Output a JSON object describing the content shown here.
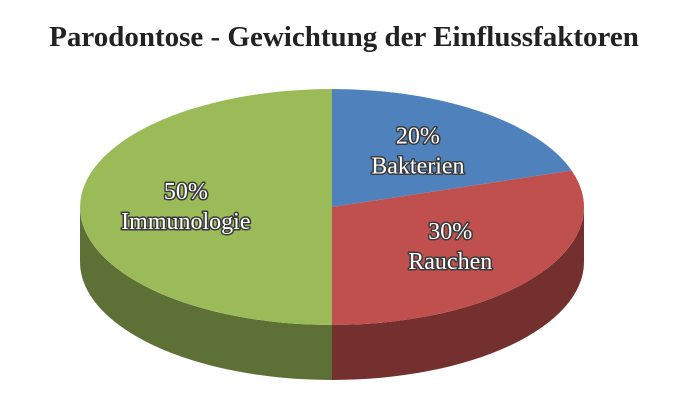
{
  "chart_data": {
    "type": "pie",
    "title": "Parodontose - Gewichtung der Einflussfaktoren",
    "categories": [
      "Bakterien",
      "Rauchen",
      "Immunologie"
    ],
    "values": [
      20,
      30,
      50
    ],
    "value_labels": [
      "20%",
      "30%",
      "50%"
    ],
    "colors": [
      "#4f81bd",
      "#c0504d",
      "#9bbb59"
    ]
  }
}
